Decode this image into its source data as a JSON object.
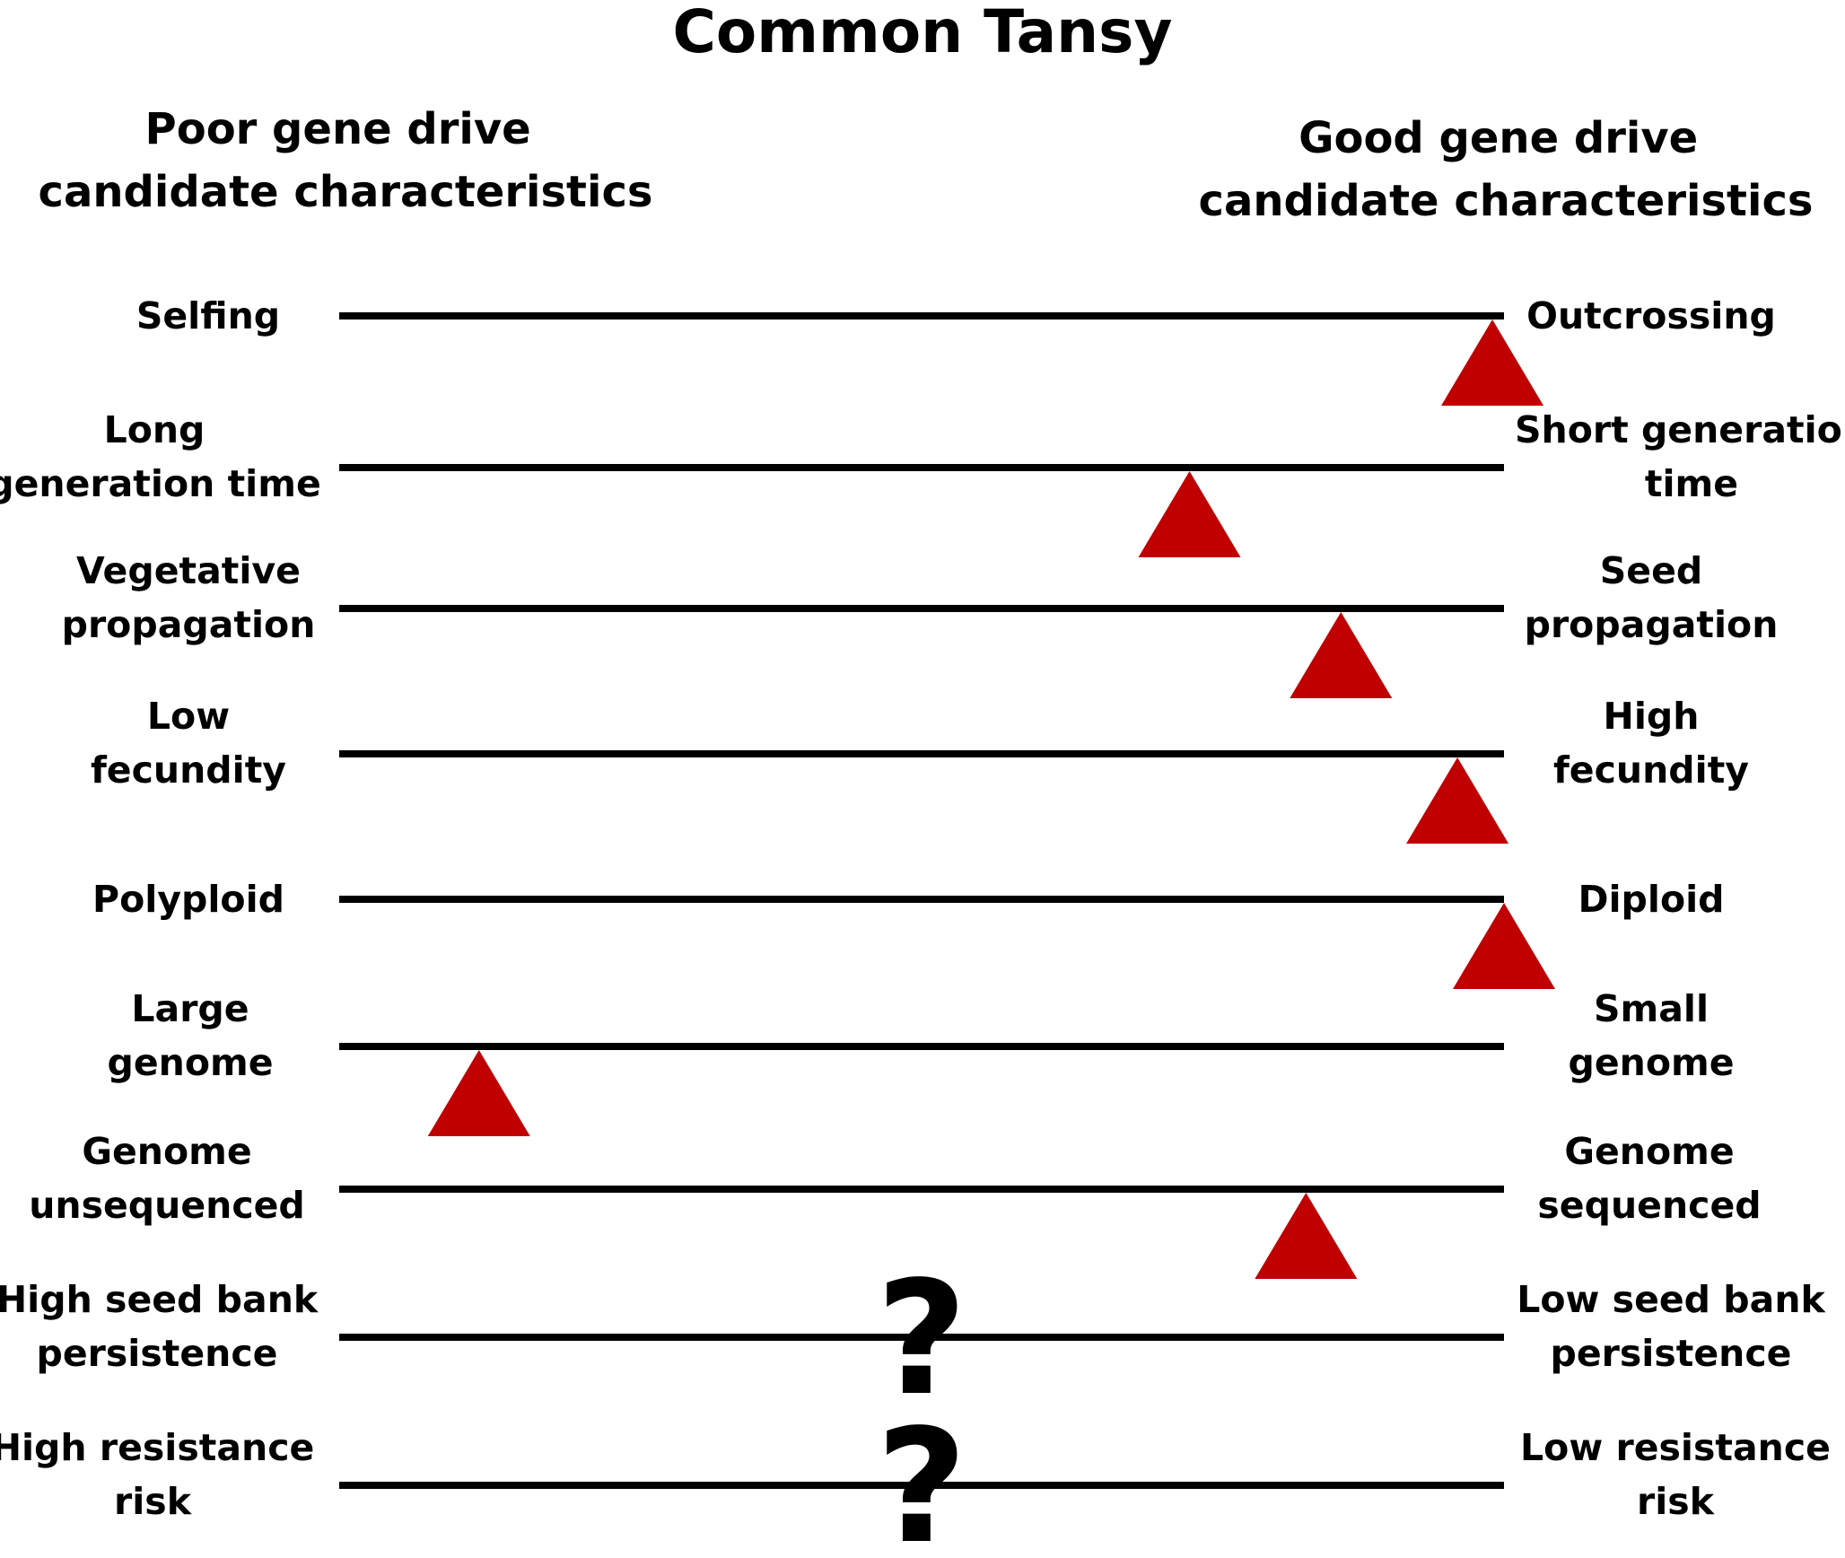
{
  "title": "Common Tansy",
  "header_left": [
    "Poor gene drive",
    "candidate characteristics"
  ],
  "header_right": [
    "Good gene drive",
    "candidate characteristics"
  ],
  "marker_color": "#c00000",
  "rows": [
    {
      "left": [
        "Selfing"
      ],
      "right": [
        "Outcrossing"
      ],
      "marker": "triangle",
      "value": 0.99
    },
    {
      "left": [
        "Long",
        "generation time"
      ],
      "right": [
        "Short generation",
        "time"
      ],
      "marker": "triangle",
      "value": 0.73
    },
    {
      "left": [
        "Vegetative",
        "propagation"
      ],
      "right": [
        "Seed",
        "propagation"
      ],
      "marker": "triangle",
      "value": 0.86
    },
    {
      "left": [
        "Low",
        "fecundity"
      ],
      "right": [
        "High",
        "fecundity"
      ],
      "marker": "triangle",
      "value": 0.96
    },
    {
      "left": [
        "Polyploid"
      ],
      "right": [
        "Diploid"
      ],
      "marker": "triangle",
      "value": 1.0
    },
    {
      "left": [
        "Large",
        "genome"
      ],
      "right": [
        "Small",
        "genome"
      ],
      "marker": "triangle",
      "value": 0.12
    },
    {
      "left": [
        "Genome",
        "unsequenced"
      ],
      "right": [
        "Genome",
        "sequenced"
      ],
      "marker": "triangle",
      "value": 0.83
    },
    {
      "left": [
        "High seed bank",
        "persistence"
      ],
      "right": [
        "Low seed bank",
        "persistence"
      ],
      "marker": "question",
      "marker_text": "?",
      "value": 0.5
    },
    {
      "left": [
        "High resistance",
        "risk"
      ],
      "right": [
        "Low resistance",
        "risk"
      ],
      "marker": "question",
      "marker_text": "?",
      "value": 0.5
    }
  ]
}
